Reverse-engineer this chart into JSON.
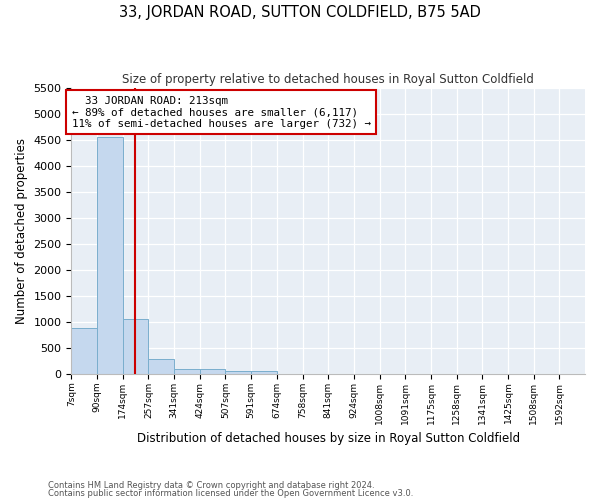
{
  "title": "33, JORDAN ROAD, SUTTON COLDFIELD, B75 5AD",
  "subtitle": "Size of property relative to detached houses in Royal Sutton Coldfield",
  "xlabel": "Distribution of detached houses by size in Royal Sutton Coldfield",
  "ylabel": "Number of detached properties",
  "bin_edges": [
    7,
    90,
    174,
    257,
    341,
    424,
    507,
    591,
    674,
    758,
    841,
    924,
    1008,
    1091,
    1175,
    1258,
    1341,
    1425,
    1508,
    1592,
    1675
  ],
  "bin_counts": [
    880,
    4550,
    1060,
    280,
    100,
    90,
    50,
    50,
    0,
    0,
    0,
    0,
    0,
    0,
    0,
    0,
    0,
    0,
    0,
    0
  ],
  "property_size": 213,
  "annotation_title": "33 JORDAN ROAD: 213sqm",
  "annotation_line1": "← 89% of detached houses are smaller (6,117)",
  "annotation_line2": "11% of semi-detached houses are larger (732) →",
  "bar_color": "#c5d8ee",
  "bar_edge_color": "#7aaecd",
  "vline_color": "#cc0000",
  "annotation_box_color": "#ffffff",
  "annotation_box_edge": "#cc0000",
  "ylim": [
    0,
    5500
  ],
  "yticks": [
    0,
    500,
    1000,
    1500,
    2000,
    2500,
    3000,
    3500,
    4000,
    4500,
    5000,
    5500
  ],
  "bg_color": "#e8eef5",
  "footer_line1": "Contains HM Land Registry data © Crown copyright and database right 2024.",
  "footer_line2": "Contains public sector information licensed under the Open Government Licence v3.0."
}
